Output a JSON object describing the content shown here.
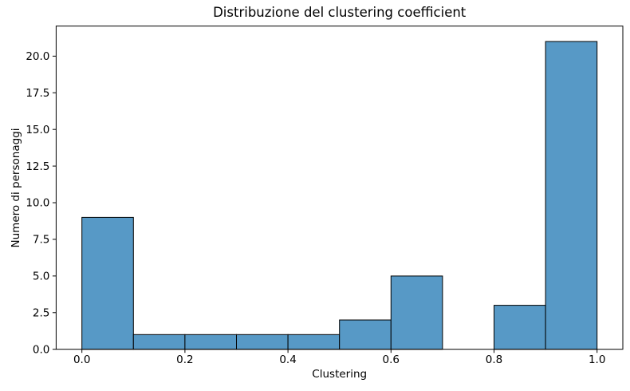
{
  "chart_data": {
    "type": "bar",
    "subtype": "histogram",
    "title": "Distribuzione del clustering coefficient",
    "xlabel": "Clustering",
    "ylabel": "Numero di personaggi",
    "bin_edges": [
      0.0,
      0.1,
      0.2,
      0.3,
      0.4,
      0.5,
      0.6,
      0.7,
      0.8,
      0.9,
      1.0
    ],
    "counts": [
      9,
      1,
      1,
      1,
      1,
      2,
      5,
      0,
      3,
      21
    ],
    "xlim": [
      -0.05,
      1.05
    ],
    "ylim": [
      0,
      22.05
    ],
    "x_ticks": [
      0.0,
      0.2,
      0.4,
      0.6,
      0.8,
      1.0
    ],
    "x_tick_labels": [
      "0.0",
      "0.2",
      "0.4",
      "0.6",
      "0.8",
      "1.0"
    ],
    "y_ticks": [
      0,
      2.5,
      5,
      7.5,
      10,
      12.5,
      15,
      17.5,
      20
    ],
    "y_tick_labels": [
      "0.0",
      "2.5",
      "5.0",
      "7.5",
      "10.0",
      "12.5",
      "15.0",
      "17.5",
      "20.0"
    ],
    "grid": false,
    "legend": null,
    "colors": {
      "bar_fill": "#5799C6",
      "bar_edge": "#000000",
      "axis": "#000000",
      "text": "#000000",
      "background": "#FFFFFF"
    }
  }
}
